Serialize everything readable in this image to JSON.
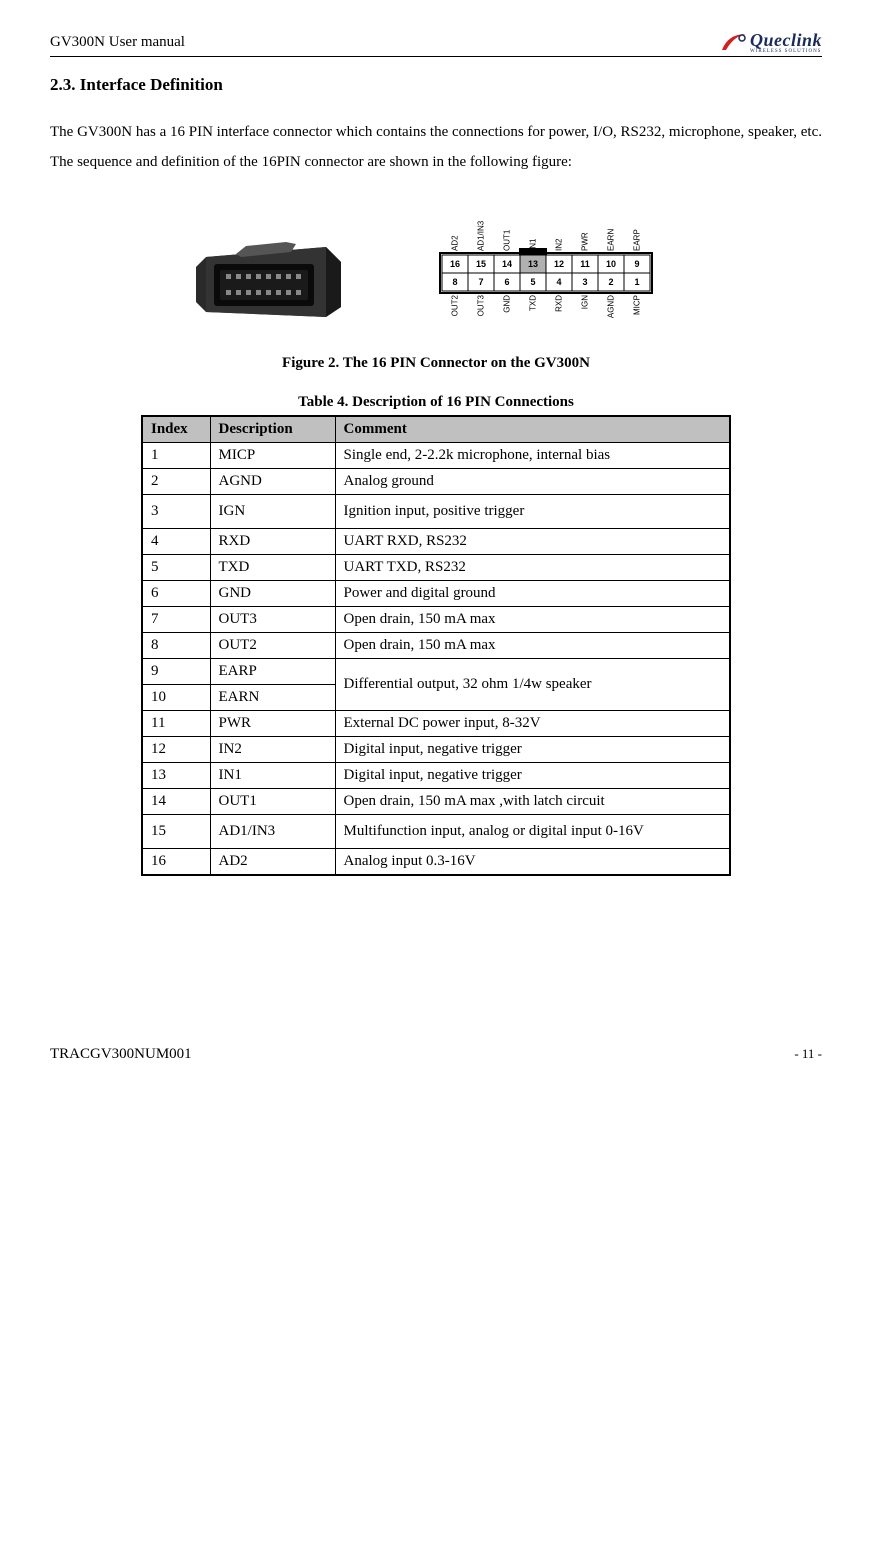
{
  "header": {
    "title": "GV300N User manual",
    "logo_main": "Queclink",
    "logo_sub": "WIRELESS SOLUTIONS"
  },
  "section_title": "2.3. Interface Definition",
  "body_text": "The GV300N has a 16 PIN interface connector which contains the connections for power, I/O, RS232, microphone, speaker, etc. The sequence and definition of the 16PIN connector are shown in the following figure:",
  "figure": {
    "caption": "Figure 2. The 16 PIN Connector on the GV300N",
    "connector_colors": {
      "body": "#2a2a2a",
      "inner": "#1a1a1a",
      "pins": "#888888",
      "lock": "#555555"
    },
    "pinout": {
      "top_row": [
        {
          "num": "16",
          "label": "AD2"
        },
        {
          "num": "15",
          "label": "AD1/IN3"
        },
        {
          "num": "14",
          "label": "OUT1"
        },
        {
          "num": "13",
          "label": "IN1",
          "shaded": true
        },
        {
          "num": "12",
          "label": "IN2"
        },
        {
          "num": "11",
          "label": "PWR"
        },
        {
          "num": "10",
          "label": "EARN"
        },
        {
          "num": "9",
          "label": "EARP"
        }
      ],
      "bottom_row": [
        {
          "num": "8",
          "label": "OUT2"
        },
        {
          "num": "7",
          "label": "OUT3"
        },
        {
          "num": "6",
          "label": "GND"
        },
        {
          "num": "5",
          "label": "TXD"
        },
        {
          "num": "4",
          "label": "RXD"
        },
        {
          "num": "3",
          "label": "IGN"
        },
        {
          "num": "2",
          "label": "AGND"
        },
        {
          "num": "1",
          "label": "MICP"
        }
      ]
    }
  },
  "table": {
    "caption": "Table 4.  Description of 16 PIN Connections",
    "headers": [
      "Index",
      "Description",
      "Comment"
    ],
    "rows": [
      {
        "index": "1",
        "desc": "MICP",
        "comment": "Single end, 2-2.2k microphone, internal bias"
      },
      {
        "index": "2",
        "desc": "AGND",
        "comment": "Analog ground"
      },
      {
        "index": "3",
        "desc": "IGN",
        "comment": "Ignition input, positive trigger",
        "tall": true
      },
      {
        "index": "4",
        "desc": "RXD",
        "comment": "UART RXD, RS232"
      },
      {
        "index": "5",
        "desc": "TXD",
        "comment": "UART TXD, RS232"
      },
      {
        "index": "6",
        "desc": "GND",
        "comment": "Power and digital ground"
      },
      {
        "index": "7",
        "desc": "OUT3",
        "comment": "Open drain, 150 mA max"
      },
      {
        "index": "8",
        "desc": "OUT2",
        "comment": "Open drain, 150 mA max"
      },
      {
        "index": "9",
        "desc": "EARP",
        "comment": "Differential output, 32 ohm 1/4w speaker",
        "rowspan": 2
      },
      {
        "index": "10",
        "desc": "EARN"
      },
      {
        "index": "11",
        "desc": "PWR",
        "comment": "External DC power input, 8-32V"
      },
      {
        "index": "12",
        "desc": "IN2",
        "comment": "Digital input, negative trigger"
      },
      {
        "index": "13",
        "desc": "IN1",
        "comment": "Digital input, negative trigger"
      },
      {
        "index": "14",
        "desc": "OUT1",
        "comment": "Open drain, 150 mA max ,with latch circuit"
      },
      {
        "index": "15",
        "desc": "AD1/IN3",
        "comment": "Multifunction input, analog or digital input 0-16V",
        "tall": true
      },
      {
        "index": "16",
        "desc": "AD2",
        "comment": "Analog input 0.3-16V"
      }
    ]
  },
  "footer": {
    "doc_id": "TRACGV300NUM001",
    "page": "- 11 -"
  }
}
